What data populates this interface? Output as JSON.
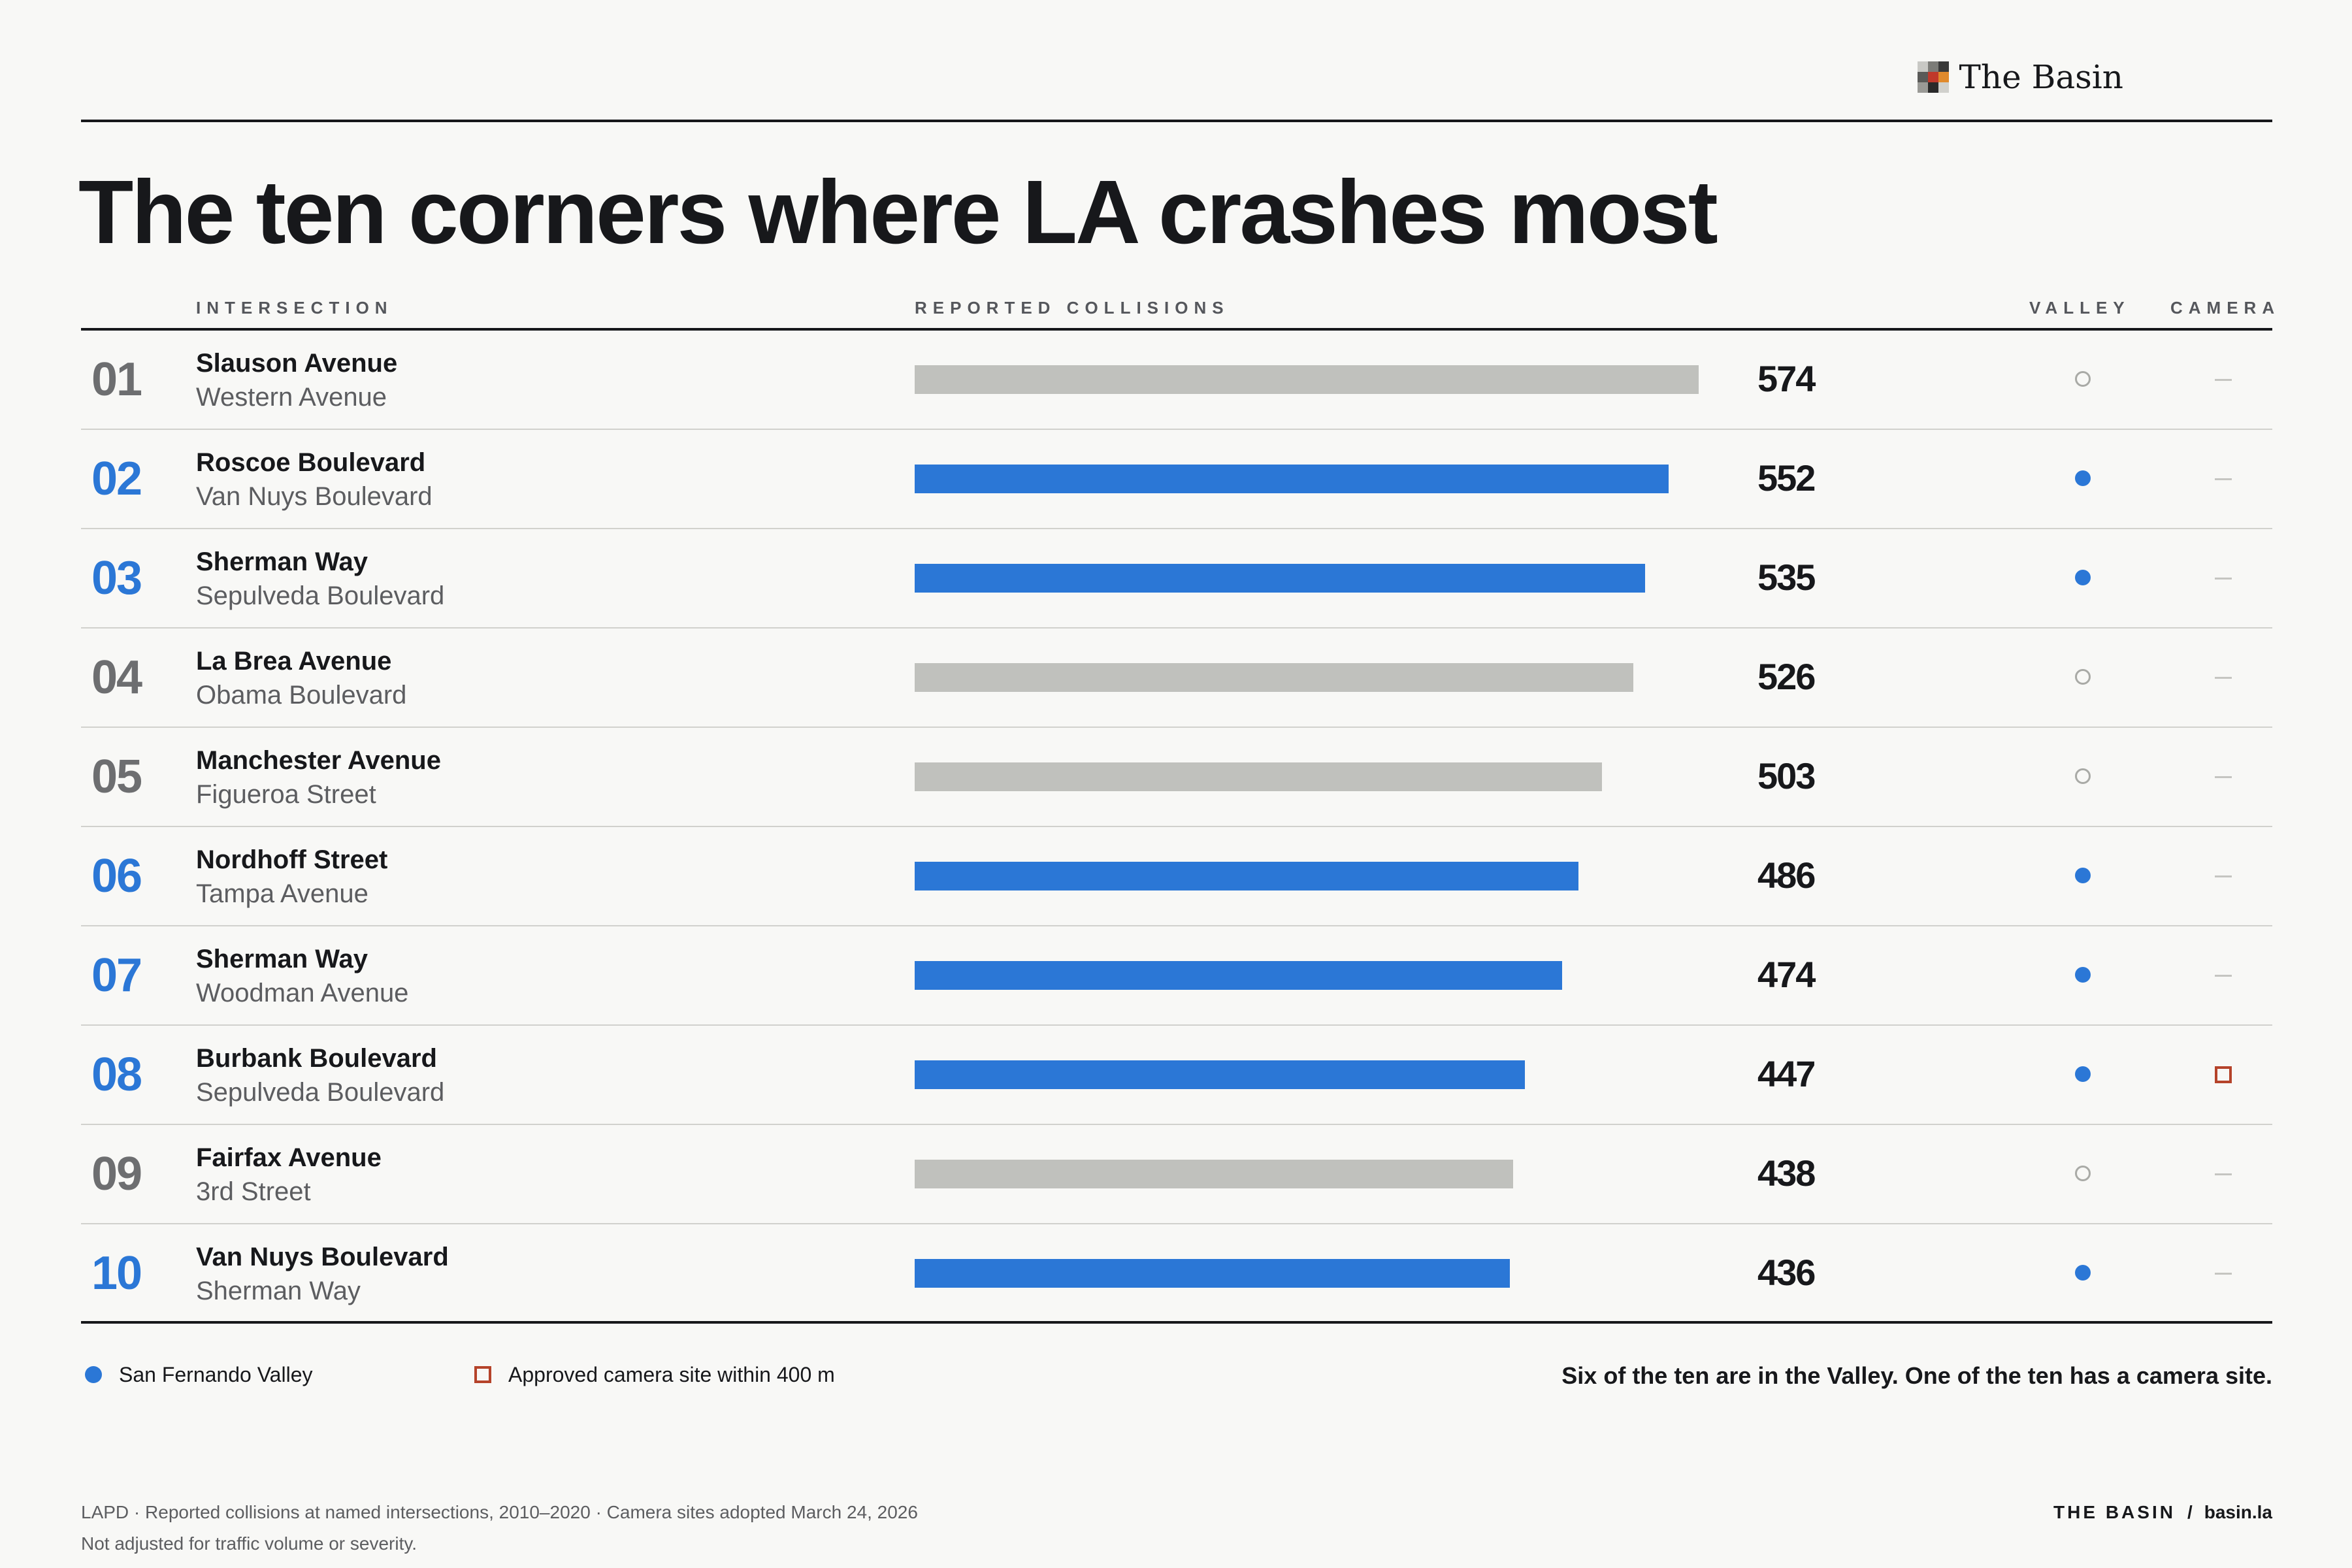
{
  "brand": {
    "name": "The Basin",
    "logo_colors": [
      "#c8c8c4",
      "#7c7c78",
      "#3a3a3a",
      "#5a5a58",
      "#c0392b",
      "#e08a2c",
      "#9a9a96",
      "#2a2a2a",
      "#d0d0cc"
    ]
  },
  "title": "The ten corners where LA crashes most",
  "columns": {
    "intersection": "INTERSECTION",
    "collisions": "REPORTED COLLISIONS",
    "valley": "VALLEY",
    "camera": "CAMERA"
  },
  "colors": {
    "valley": "#2b77d6",
    "non_valley": "#c0c1bd",
    "camera": "#b5432a",
    "muted_rank": "#6d6e70"
  },
  "chart_data": {
    "type": "bar",
    "orientation": "horizontal",
    "xlim": [
      0,
      574
    ],
    "rows": [
      {
        "rank": "01",
        "street1": "Slauson Avenue",
        "street2": "Western Avenue",
        "value": 574,
        "valley": false,
        "camera": false
      },
      {
        "rank": "02",
        "street1": "Roscoe Boulevard",
        "street2": "Van Nuys Boulevard",
        "value": 552,
        "valley": true,
        "camera": false
      },
      {
        "rank": "03",
        "street1": "Sherman Way",
        "street2": "Sepulveda Boulevard",
        "value": 535,
        "valley": true,
        "camera": false
      },
      {
        "rank": "04",
        "street1": "La Brea Avenue",
        "street2": "Obama Boulevard",
        "value": 526,
        "valley": false,
        "camera": false
      },
      {
        "rank": "05",
        "street1": "Manchester Avenue",
        "street2": "Figueroa Street",
        "value": 503,
        "valley": false,
        "camera": false
      },
      {
        "rank": "06",
        "street1": "Nordhoff Street",
        "street2": "Tampa Avenue",
        "value": 486,
        "valley": true,
        "camera": false
      },
      {
        "rank": "07",
        "street1": "Sherman Way",
        "street2": "Woodman Avenue",
        "value": 474,
        "valley": true,
        "camera": false
      },
      {
        "rank": "08",
        "street1": "Burbank Boulevard",
        "street2": "Sepulveda Boulevard",
        "value": 447,
        "valley": true,
        "camera": true
      },
      {
        "rank": "09",
        "street1": "Fairfax Avenue",
        "street2": "3rd Street",
        "value": 438,
        "valley": false,
        "camera": false
      },
      {
        "rank": "10",
        "street1": "Van Nuys Boulevard",
        "street2": "Sherman Way",
        "value": 436,
        "valley": true,
        "camera": false
      }
    ]
  },
  "legend": {
    "valley": "San Fernando Valley",
    "camera": "Approved camera site within 400 m"
  },
  "takeaway": "Six of the ten are in the Valley. One of the ten has a camera site.",
  "footer": {
    "source_line1": "LAPD · Reported collisions at named intersections, 2010–2020 · Camera sites adopted March 24, 2026",
    "source_line2": "Not adjusted for traffic volume or severity.",
    "brand": "THE BASIN",
    "separator": "/",
    "site": "basin.la"
  }
}
